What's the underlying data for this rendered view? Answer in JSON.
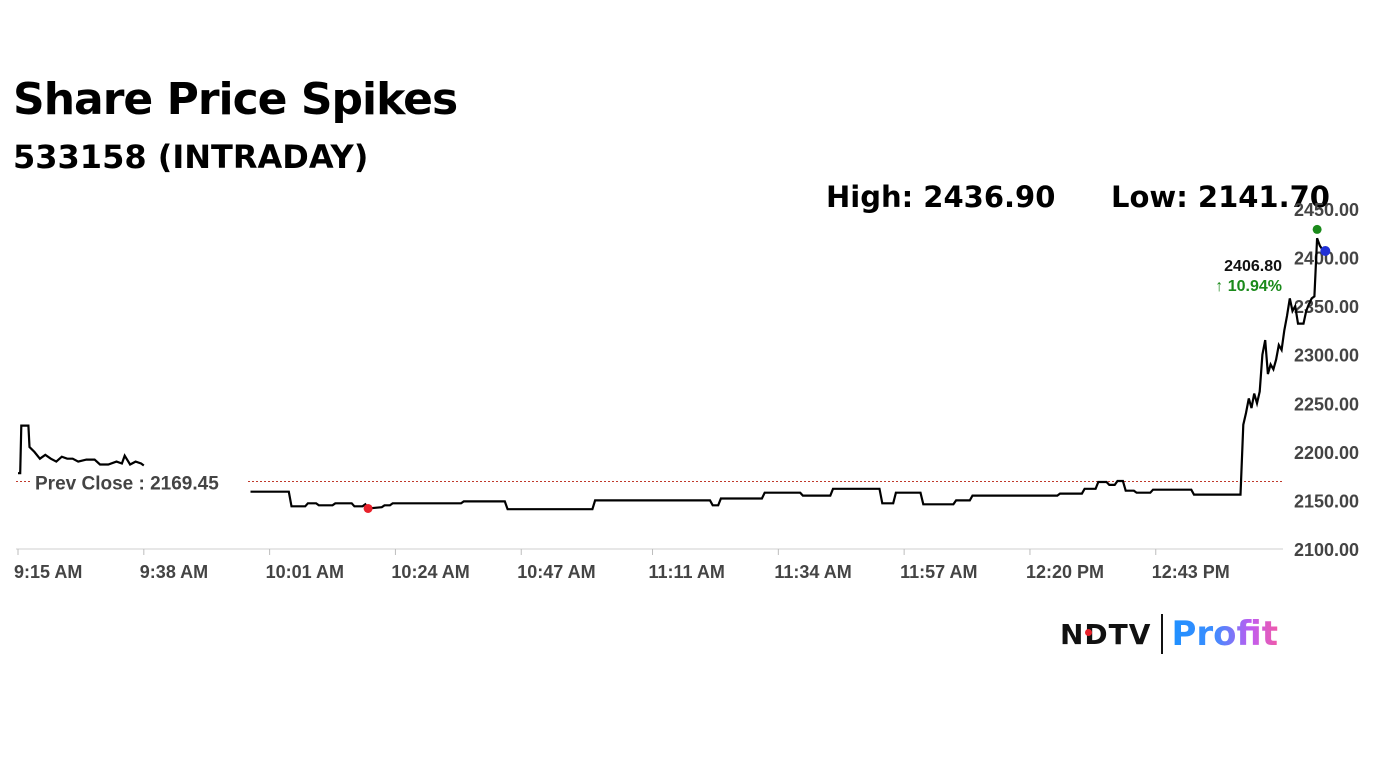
{
  "header": {
    "title": "Share Price Spikes",
    "subtitle": "533158 (INTRADAY)",
    "high_label": "High: 2436.90",
    "low_label": "Low: 2141.70"
  },
  "logo": {
    "ndtv": "NDTV",
    "profit": "Profit"
  },
  "colors": {
    "line": "#000000",
    "prev_close": "#c0392b",
    "low_marker": "#e8212b",
    "high_marker": "#1a8a1a",
    "last_marker": "#1f2fd6",
    "change_text": "#1a8a1a"
  },
  "chart_data": {
    "type": "line",
    "title": "Share Price Spikes",
    "subtitle": "533158 (INTRADAY)",
    "ylim": [
      2100,
      2450
    ],
    "yticks": [
      2100,
      2150,
      2200,
      2250,
      2300,
      2350,
      2400,
      2450
    ],
    "ytick_labels": [
      "2100.00",
      "2150.00",
      "2200.00",
      "2250.00",
      "2300.00",
      "2350.00",
      "2400.00",
      "2450.00"
    ],
    "xlim_minutes": [
      0,
      240
    ],
    "xticks": [
      {
        "minutes": 0,
        "label": "9:15 AM"
      },
      {
        "minutes": 23,
        "label": "9:38 AM"
      },
      {
        "minutes": 46,
        "label": "10:01 AM"
      },
      {
        "minutes": 69,
        "label": "10:24 AM"
      },
      {
        "minutes": 92,
        "label": "10:47 AM"
      },
      {
        "minutes": 116,
        "label": "11:11 AM"
      },
      {
        "minutes": 139,
        "label": "11:34 AM"
      },
      {
        "minutes": 162,
        "label": "11:57 AM"
      },
      {
        "minutes": 185,
        "label": "12:20 PM"
      },
      {
        "minutes": 208,
        "label": "12:43 PM"
      }
    ],
    "prev_close": {
      "value": 2169.45,
      "label": "Prev Close : 2169.45"
    },
    "last": {
      "value": 2406.8,
      "label": "2406.80",
      "change_label": "↑ 10.94%"
    },
    "high": {
      "value": 2436.9
    },
    "low": {
      "value": 2141.7
    },
    "series": [
      {
        "segments": [
          [
            [
              0.0,
              2178
            ],
            [
              0.4,
              2178
            ],
            [
              0.6,
              2227
            ],
            [
              1.9,
              2227
            ],
            [
              2.1,
              2205
            ],
            [
              3.0,
              2200
            ],
            [
              4.0,
              2193
            ],
            [
              5.0,
              2197
            ],
            [
              6.0,
              2193
            ],
            [
              7.0,
              2190
            ],
            [
              8.0,
              2195
            ],
            [
              9.0,
              2193
            ],
            [
              10.0,
              2193
            ],
            [
              11.0,
              2190
            ],
            [
              12.5,
              2192
            ],
            [
              14.0,
              2192
            ],
            [
              15.0,
              2187
            ],
            [
              16.5,
              2187
            ],
            [
              18.0,
              2190
            ],
            [
              19.0,
              2188
            ],
            [
              19.5,
              2196
            ],
            [
              20.5,
              2187
            ],
            [
              21.5,
              2190
            ],
            [
              22.5,
              2188
            ],
            [
              23.0,
              2186
            ]
          ],
          [
            [
              42.5,
              2159
            ],
            [
              49.5,
              2159
            ],
            [
              50.0,
              2144
            ],
            [
              52.5,
              2144
            ],
            [
              53.0,
              2147
            ],
            [
              54.5,
              2147
            ],
            [
              55.0,
              2145
            ],
            [
              57.5,
              2145
            ],
            [
              58.0,
              2147
            ],
            [
              61.0,
              2147
            ],
            [
              61.5,
              2144
            ],
            [
              63.0,
              2144
            ],
            [
              63.5,
              2146
            ],
            [
              64.0,
              2141.7
            ],
            [
              66.5,
              2143
            ],
            [
              67.0,
              2145
            ],
            [
              68.0,
              2145
            ],
            [
              68.5,
              2147
            ],
            [
              81.0,
              2147
            ],
            [
              81.5,
              2149
            ],
            [
              89.0,
              2149
            ],
            [
              89.5,
              2141
            ],
            [
              105.0,
              2141
            ],
            [
              105.5,
              2150
            ],
            [
              126.5,
              2150
            ],
            [
              127.0,
              2145
            ],
            [
              128.0,
              2145
            ],
            [
              128.5,
              2152
            ],
            [
              136.0,
              2152
            ],
            [
              136.5,
              2158
            ],
            [
              143.0,
              2158
            ],
            [
              143.5,
              2155
            ],
            [
              148.5,
              2155
            ],
            [
              149.0,
              2162
            ],
            [
              157.5,
              2162
            ],
            [
              158.0,
              2147
            ],
            [
              160.0,
              2147
            ],
            [
              160.5,
              2158
            ],
            [
              165.0,
              2158
            ],
            [
              165.5,
              2146
            ],
            [
              171.0,
              2146
            ],
            [
              171.5,
              2150
            ],
            [
              174.0,
              2150
            ],
            [
              174.5,
              2155
            ],
            [
              190.0,
              2155
            ],
            [
              190.5,
              2157
            ],
            [
              194.5,
              2157
            ],
            [
              195.0,
              2162
            ],
            [
              197.0,
              2162
            ],
            [
              197.5,
              2169
            ],
            [
              199.0,
              2169
            ],
            [
              199.5,
              2166
            ],
            [
              200.5,
              2166
            ],
            [
              201.0,
              2170
            ],
            [
              202.0,
              2170
            ],
            [
              202.5,
              2160
            ],
            [
              204.0,
              2160
            ],
            [
              204.5,
              2158
            ],
            [
              207.0,
              2158
            ],
            [
              207.5,
              2161
            ],
            [
              214.5,
              2161
            ],
            [
              215.0,
              2156
            ],
            [
              223.5,
              2156
            ],
            [
              224.0,
              2228
            ],
            [
              224.5,
              2240
            ],
            [
              225.0,
              2255
            ],
            [
              225.5,
              2245
            ],
            [
              226.0,
              2260
            ],
            [
              226.5,
              2250
            ],
            [
              227.0,
              2262
            ],
            [
              227.5,
              2300
            ],
            [
              228.0,
              2315
            ],
            [
              228.5,
              2280
            ],
            [
              229.0,
              2290
            ],
            [
              229.5,
              2285
            ],
            [
              230.0,
              2295
            ],
            [
              230.5,
              2310
            ],
            [
              231.0,
              2305
            ],
            [
              231.5,
              2325
            ],
            [
              232.0,
              2340
            ],
            [
              232.5,
              2358
            ],
            [
              233.0,
              2345
            ],
            [
              233.5,
              2350
            ],
            [
              234.0,
              2332
            ],
            [
              235.0,
              2332
            ],
            [
              235.5,
              2345
            ],
            [
              236.0,
              2352
            ],
            [
              236.5,
              2358
            ],
            [
              237.0,
              2360
            ],
            [
              237.5,
              2420
            ],
            [
              238.0,
              2412
            ],
            [
              238.5,
              2408
            ],
            [
              239.0,
              2406.8
            ]
          ]
        ]
      }
    ]
  }
}
